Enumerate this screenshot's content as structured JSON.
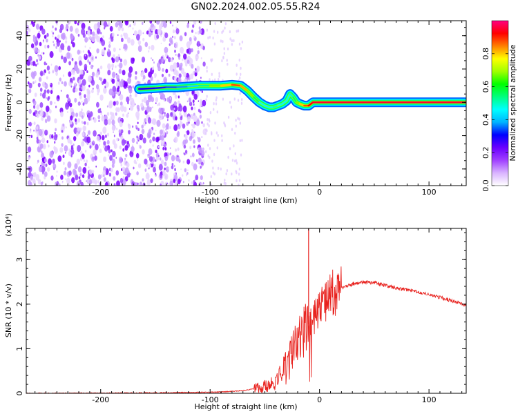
{
  "title": "GN02.2024.002.05.55.R24",
  "chart_data": [
    {
      "type": "heatmap",
      "xlabel": "Height of straight line (km)",
      "ylabel": "Frequency (Hz)",
      "xlim": [
        -268,
        134
      ],
      "ylim": [
        -50,
        49
      ],
      "x_ticks": [
        -200,
        -100,
        0,
        100
      ],
      "y_ticks": [
        -40,
        -20,
        0,
        20,
        40
      ],
      "colorbar": {
        "label": "Normalized spectral amplitude",
        "range": [
          0.0,
          1.0
        ],
        "ticks": [
          0.0,
          0.2,
          0.4,
          0.6,
          0.8
        ],
        "colors": [
          "#ffffff",
          "#d9b3ff",
          "#a040ff",
          "#6a00ff",
          "#0000ff",
          "#00b4ff",
          "#00ffff",
          "#00ff80",
          "#00ff00",
          "#a0ff00",
          "#ffff00",
          "#ff8000",
          "#ff0000",
          "#ff0080"
        ]
      },
      "ridge": {
        "x": [
          -165,
          -150,
          -140,
          -130,
          -120,
          -110,
          -100,
          -90,
          -80,
          -72,
          -66,
          -60,
          -55,
          -50,
          -46,
          -42,
          -38,
          -34,
          -30,
          -27,
          -24,
          -21,
          -18,
          -14,
          -10,
          -6,
          0,
          20,
          40,
          60,
          80,
          100,
          120,
          134
        ],
        "y": [
          8,
          8.5,
          9,
          9,
          9.5,
          10,
          10,
          10,
          10.5,
          10,
          7,
          3,
          0,
          -2,
          -3,
          -3,
          -2,
          -1,
          1,
          5,
          3,
          0,
          -1,
          -2,
          -2,
          0,
          0,
          0,
          0,
          0,
          0,
          0,
          0,
          0
        ],
        "amplitude": [
          0.3,
          0.3,
          0.35,
          0.35,
          0.4,
          0.45,
          0.6,
          0.75,
          0.85,
          0.9,
          0.75,
          0.6,
          0.5,
          0.45,
          0.45,
          0.5,
          0.5,
          0.45,
          0.45,
          0.5,
          0.5,
          0.6,
          0.75,
          0.85,
          0.9,
          0.95,
          0.95,
          0.95,
          0.95,
          0.95,
          0.95,
          0.95,
          0.95,
          0.95
        ]
      },
      "noise_region_x": [
        -268,
        -105
      ]
    },
    {
      "type": "line",
      "xlabel": "Height of straight line (km)",
      "ylabel": "SNR (10 * v/v)",
      "y_scale_label": "(x10⁴)",
      "xlim": [
        -268,
        134
      ],
      "ylim": [
        0,
        3.7
      ],
      "x_ticks": [
        -200,
        -100,
        0,
        100
      ],
      "y_ticks": [
        0,
        1,
        2,
        3
      ],
      "series": [
        {
          "color": "#e8221e",
          "x": [
            -268,
            -200,
            -150,
            -110,
            -90,
            -70,
            -60,
            -50,
            -40,
            -35,
            -30,
            -25,
            -20,
            -15,
            -10,
            -5,
            0,
            5,
            10,
            20,
            30,
            40,
            50,
            60,
            70,
            80,
            90,
            100,
            110,
            120,
            134
          ],
          "y": [
            0.0,
            0.005,
            0.01,
            0.02,
            0.03,
            0.06,
            0.1,
            0.15,
            0.25,
            0.45,
            0.7,
            0.95,
            1.15,
            1.35,
            1.55,
            1.75,
            1.9,
            2.05,
            2.2,
            2.35,
            2.45,
            2.5,
            2.48,
            2.42,
            2.36,
            2.32,
            2.27,
            2.22,
            2.15,
            2.08,
            1.98
          ]
        }
      ],
      "spike": {
        "x": -10,
        "y": 3.7
      }
    }
  ]
}
